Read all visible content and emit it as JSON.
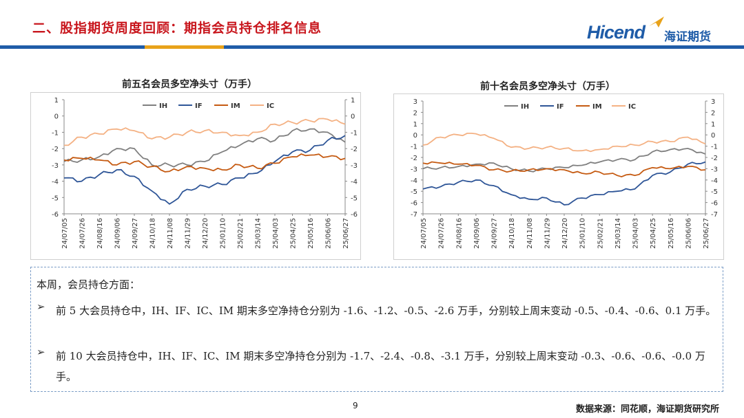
{
  "header": {
    "title": "二、股指期货周度回顾：期指会员持仓排名信息",
    "logo_en": "Hicend",
    "logo_cn": "海证期货"
  },
  "colors": {
    "title_red": "#c8161d",
    "brand_blue": "#1f5ca8",
    "stripe_blue": "#1f5ca8",
    "stripe_orange": "#e8a21a",
    "IH": "#7f7f7f",
    "IF": "#2e5597",
    "IM": "#c55a11",
    "IC": "#f4b183"
  },
  "chart_data": [
    {
      "type": "line",
      "title": "前五名会员多空净头寸（万手）",
      "x": [
        "24/07/05",
        "24/07/26",
        "24/08/16",
        "24/09/06",
        "24/09/27",
        "24/10/18",
        "24/11/08",
        "24/11/29",
        "24/12/20",
        "25/01/10",
        "25/02/21",
        "25/03/14",
        "25/04/03",
        "25/04/25",
        "25/05/16",
        "25/06/06",
        "25/06/27"
      ],
      "ylim": [
        -6,
        1
      ],
      "yticks": [
        1,
        0,
        -1,
        -2,
        -3,
        -4,
        -5,
        -6
      ],
      "legend": "top-center",
      "series": [
        {
          "name": "IH",
          "values": [
            -2.8,
            -2.7,
            -2.5,
            -2.0,
            -2.0,
            -3.0,
            -3.0,
            -3.0,
            -2.8,
            -2.2,
            -1.8,
            -1.4,
            -1.5,
            -0.9,
            -0.8,
            -1.0,
            -1.6
          ]
        },
        {
          "name": "IF",
          "values": [
            -3.8,
            -4.0,
            -3.6,
            -3.3,
            -3.7,
            -4.6,
            -5.4,
            -4.5,
            -4.3,
            -4.2,
            -3.8,
            -3.5,
            -2.8,
            -2.2,
            -2.1,
            -1.5,
            -1.2
          ]
        },
        {
          "name": "IM",
          "values": [
            -2.7,
            -2.6,
            -2.7,
            -3.0,
            -2.8,
            -3.1,
            -3.4,
            -3.1,
            -3.2,
            -3.3,
            -3.0,
            -3.2,
            -2.9,
            -2.5,
            -2.4,
            -2.5,
            -2.6
          ]
        },
        {
          "name": "IC",
          "values": [
            -1.8,
            -1.3,
            -1.1,
            -0.8,
            -0.9,
            -1.4,
            -1.3,
            -1.0,
            -0.9,
            -1.0,
            -1.2,
            -1.0,
            -0.5,
            -0.4,
            -0.3,
            -0.2,
            -0.5
          ]
        }
      ]
    },
    {
      "type": "line",
      "title": "前十名会员多空净头寸（万手）",
      "x": [
        "24/07/05",
        "24/07/26",
        "24/08/16",
        "24/09/06",
        "24/09/27",
        "24/10/18",
        "24/11/08",
        "24/11/29",
        "24/12/20",
        "25/01/10",
        "25/02/21",
        "25/03/14",
        "25/04/03",
        "25/04/25",
        "25/05/16",
        "25/06/06",
        "25/06/27"
      ],
      "ylim": [
        -7,
        3
      ],
      "yticks": [
        3,
        2,
        1,
        0,
        -1,
        -2,
        -3,
        -4,
        -5,
        -6,
        -7
      ],
      "legend": "top-center",
      "series": [
        {
          "name": "IH",
          "values": [
            -3.0,
            -2.9,
            -2.8,
            -2.6,
            -2.5,
            -3.0,
            -3.2,
            -3.0,
            -2.9,
            -2.7,
            -2.4,
            -2.2,
            -2.2,
            -1.5,
            -1.3,
            -1.2,
            -1.7
          ]
        },
        {
          "name": "IF",
          "values": [
            -4.8,
            -4.6,
            -4.2,
            -4.0,
            -4.5,
            -5.3,
            -5.7,
            -5.6,
            -6.2,
            -5.6,
            -5.3,
            -5.0,
            -4.8,
            -3.6,
            -3.3,
            -2.6,
            -2.4
          ]
        },
        {
          "name": "IM",
          "values": [
            -2.5,
            -2.5,
            -2.6,
            -2.7,
            -3.1,
            -3.2,
            -3.1,
            -3.0,
            -3.1,
            -3.4,
            -3.3,
            -3.6,
            -3.6,
            -2.9,
            -3.0,
            -2.8,
            -3.1
          ]
        },
        {
          "name": "IC",
          "values": [
            -0.9,
            -0.2,
            0.0,
            0.1,
            -0.3,
            -1.1,
            -1.2,
            -1.1,
            -1.2,
            -1.4,
            -1.3,
            -1.0,
            -0.9,
            -0.6,
            -0.6,
            -0.2,
            -0.8
          ]
        }
      ]
    }
  ],
  "commentary": {
    "intro": "本周，会员持仓方面：",
    "bullets": [
      "前 5 大会员持仓中，IH、IF、IC、IM 期末多空净持仓分别为 -1.6、-1.2、-0.5、-2.6 万手，分别较上周末变动 -0.5、-0.4、-0.6、0.1 万手。",
      "前 10 大会员持仓中，IH、IF、IC、IM 期末多空净持仓分别为 -1.7、-2.4、-0.8、-3.1 万手，分别较上周末变动 -0.3、-0.6、-0.6、-0.0 万手。"
    ],
    "bullet_symbol": "➢"
  },
  "footer": {
    "page_number": "9",
    "source": "数据来源：同花顺，海证期货研究所"
  }
}
